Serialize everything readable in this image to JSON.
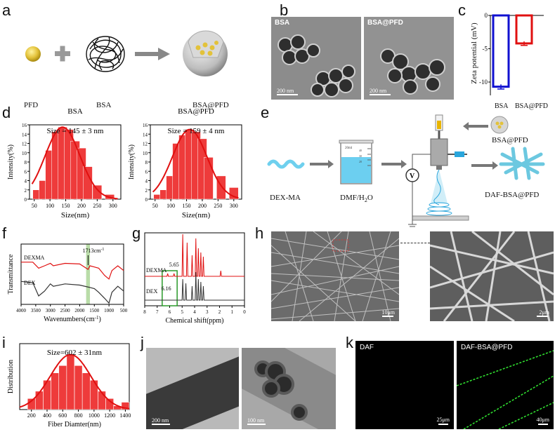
{
  "panels": {
    "a": {
      "label": "a",
      "items": [
        "PFD",
        "BSA",
        "BSA@PFD"
      ]
    },
    "b": {
      "label": "b",
      "images": [
        {
          "label": "BSA",
          "scale": "200 nm"
        },
        {
          "label": "BSA@PFD",
          "scale": "200 nm"
        }
      ]
    },
    "c": {
      "label": "c",
      "ylabel": "Zeta potential (mV)",
      "yticks": [
        "0",
        "-5",
        "-10"
      ],
      "xlabels": [
        "BSA",
        "BSA@PFD"
      ]
    },
    "d": {
      "label": "d",
      "plots": [
        {
          "title": "BSA",
          "annotation": "Size = 145 ± 3 nm",
          "ylabel": "Intensity(%)",
          "xlabel": "Size(nm)",
          "xticks": [
            "50",
            "100",
            "150",
            "200",
            "250",
            "300"
          ],
          "yticks": [
            "0",
            "2",
            "4",
            "6",
            "8",
            "10",
            "12",
            "14",
            "16"
          ]
        },
        {
          "title": "BSA@PFD",
          "annotation": "Size = 159 ± 4 nm",
          "ylabel": "Intensity(%)",
          "xlabel": "Size(nm)",
          "xticks": [
            "50",
            "100",
            "150",
            "200",
            "250",
            "300"
          ],
          "yticks": [
            "0",
            "2",
            "4",
            "6",
            "8",
            "10",
            "12",
            "14",
            "16"
          ]
        }
      ]
    },
    "e": {
      "label": "e",
      "items": [
        "DEX-MA",
        "DMF/H",
        "2",
        "O",
        "BSA@PFD",
        "DAF-BSA@PFD",
        "V",
        "20ml",
        "40",
        "30",
        "20"
      ]
    },
    "f": {
      "label": "f",
      "ylabel": "Transmittance",
      "xlabel": "Wavenumbers(cm",
      "xlabel_sup": "-1",
      "xlabel_end": ")",
      "series_labels": [
        "DEXMA",
        "DEX"
      ],
      "annotation": "1713cm",
      "annotation_sup": "-1",
      "xticks": [
        "4000",
        "3500",
        "3000",
        "2500",
        "2000",
        "1500",
        "1000",
        "500"
      ]
    },
    "g": {
      "label": "g",
      "xlabel": "Chemical shift(ppm)",
      "series_labels": [
        "DEXMA",
        "DEX"
      ],
      "annotations": [
        "5.65",
        "6.16"
      ],
      "xticks": [
        "8",
        "7",
        "6",
        "5",
        "4",
        "3",
        "2",
        "1",
        "0"
      ]
    },
    "h": {
      "label": "h",
      "scales": [
        "10μm",
        "2μm"
      ]
    },
    "i": {
      "label": "i",
      "annotation": "Size=602 ± 31nm",
      "ylabel": "Distribution",
      "xlabel": "Fiber Diamter(nm)",
      "xticks": [
        "200",
        "400",
        "600",
        "800",
        "1000",
        "1200",
        "1400"
      ]
    },
    "j": {
      "label": "j",
      "scales": [
        "200 nm",
        "100 nm"
      ]
    },
    "k": {
      "label": "k",
      "images": [
        {
          "label": "DAF",
          "scale": "25μm"
        },
        {
          "label": "DAF-BSA@PFD",
          "scale": "40μm"
        }
      ]
    }
  },
  "chart_data": [
    {
      "type": "bar",
      "panel": "c",
      "categories": [
        "BSA",
        "BSA@PFD"
      ],
      "values": [
        -10.7,
        -4.2
      ],
      "errors": [
        0.35,
        0.3
      ],
      "ylabel": "Zeta potential (mV)",
      "ylim": [
        -12,
        0
      ],
      "colors": [
        "#1010d0",
        "#e01010"
      ]
    },
    {
      "type": "bar",
      "panel": "d-left",
      "title": "BSA",
      "xlabel": "Size(nm)",
      "ylabel": "Intensity(%)",
      "x": [
        60,
        80,
        100,
        120,
        140,
        160,
        180,
        200,
        220,
        250,
        290
      ],
      "values": [
        2,
        4,
        10.5,
        14.5,
        15.5,
        15,
        12.5,
        11,
        7,
        3,
        1
      ],
      "xlim": [
        35,
        325
      ],
      "ylim": [
        0,
        16
      ]
    },
    {
      "type": "bar",
      "panel": "d-right",
      "title": "BSA@PFD",
      "xlabel": "Size(nm)",
      "ylabel": "Intensity(%)",
      "x": [
        60,
        80,
        100,
        120,
        140,
        160,
        180,
        200,
        220,
        260,
        300
      ],
      "values": [
        1,
        2,
        5,
        12,
        13.8,
        15,
        14.5,
        13,
        9,
        5,
        2.5
      ],
      "xlim": [
        35,
        325
      ],
      "ylim": [
        0,
        16
      ]
    },
    {
      "type": "bar",
      "panel": "i",
      "xlabel": "Fiber Diamter(nm)",
      "ylabel": "Distribution",
      "x": [
        200,
        300,
        400,
        500,
        600,
        700,
        800,
        900,
        1000,
        1100,
        1200,
        1300,
        1400
      ],
      "values": [
        3,
        5,
        8,
        10,
        12,
        15,
        12,
        10,
        8,
        5,
        3,
        1,
        2
      ],
      "xlim": [
        50,
        1450
      ],
      "ylim": [
        0,
        18
      ]
    }
  ]
}
